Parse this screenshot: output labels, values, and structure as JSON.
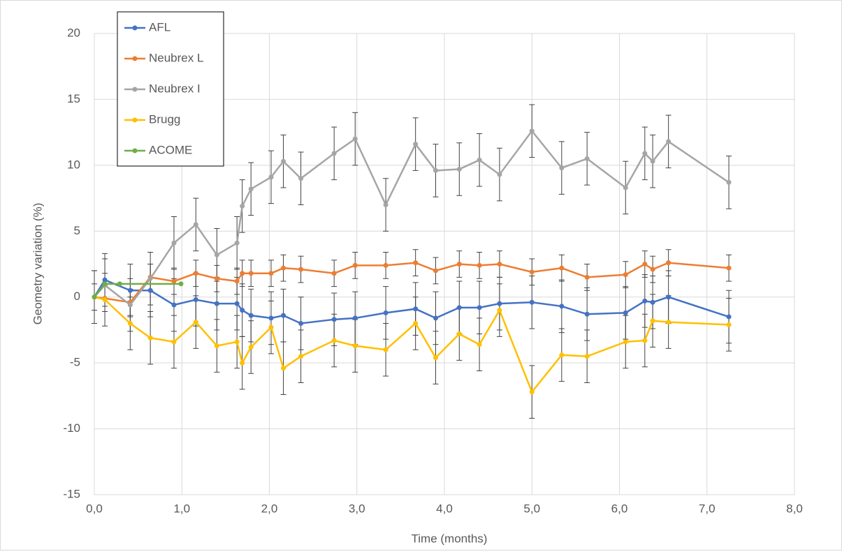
{
  "chart_data": {
    "type": "line",
    "xlabel": "Time (months)",
    "ylabel": "Geometry variation (%)",
    "xlim": [
      0,
      8
    ],
    "xticks": [
      {
        "value": 0,
        "label": "0,0"
      },
      {
        "value": 1,
        "label": "1,0"
      },
      {
        "value": 2,
        "label": "2,0"
      },
      {
        "value": 3,
        "label": "3,0"
      },
      {
        "value": 4,
        "label": "4,0"
      },
      {
        "value": 5,
        "label": "5,0"
      },
      {
        "value": 6,
        "label": "6,0"
      },
      {
        "value": 7,
        "label": "7,0"
      },
      {
        "value": 8,
        "label": "8,0"
      }
    ],
    "ylim": [
      -15,
      20
    ],
    "yticks": [
      -15,
      -10,
      -5,
      0,
      5,
      10,
      15,
      20
    ],
    "grid": true,
    "legend": "upper left",
    "series": [
      {
        "name": "AFL",
        "color": "#4472c4",
        "error": 2,
        "x": [
          0,
          0.12,
          0.41,
          0.64,
          0.91,
          1.16,
          1.4,
          1.63,
          1.69,
          1.79,
          2.02,
          2.16,
          2.36,
          2.74,
          2.98,
          3.33,
          3.67,
          3.9,
          4.17,
          4.4,
          4.63,
          5.0,
          5.34,
          5.63,
          6.07,
          6.29,
          6.38,
          6.56,
          7.25
        ],
        "values": [
          0,
          1.3,
          0.5,
          0.5,
          -0.6,
          -0.2,
          -0.5,
          -0.5,
          -1.0,
          -1.4,
          -1.6,
          -1.4,
          -2.0,
          -1.7,
          -1.6,
          -1.2,
          -0.9,
          -1.6,
          -0.8,
          -0.8,
          -0.5,
          -0.4,
          -0.7,
          -1.3,
          -1.2,
          -0.3,
          -0.4,
          0,
          -1.5
        ]
      },
      {
        "name": "Neubrex L",
        "color": "#ed7d31",
        "error": 1,
        "x": [
          0,
          0.12,
          0.41,
          0.64,
          0.91,
          1.16,
          1.4,
          1.63,
          1.69,
          1.79,
          2.02,
          2.16,
          2.36,
          2.74,
          2.98,
          3.33,
          3.67,
          3.9,
          4.17,
          4.4,
          4.63,
          5.0,
          5.34,
          5.63,
          6.07,
          6.29,
          6.38,
          6.56,
          7.25
        ],
        "values": [
          0,
          -0.1,
          -0.4,
          1.5,
          1.2,
          1.8,
          1.4,
          1.2,
          1.8,
          1.8,
          1.8,
          2.2,
          2.1,
          1.8,
          2.4,
          2.4,
          2.6,
          2.0,
          2.5,
          2.4,
          2.5,
          1.9,
          2.2,
          1.5,
          1.7,
          2.5,
          2.1,
          2.6,
          2.2
        ]
      },
      {
        "name": "Neubrex I",
        "color": "#a5a5a5",
        "error": 2,
        "x": [
          0,
          0.12,
          0.41,
          0.64,
          0.91,
          1.16,
          1.4,
          1.63,
          1.69,
          1.79,
          2.02,
          2.16,
          2.36,
          2.74,
          2.98,
          3.33,
          3.67,
          3.9,
          4.17,
          4.4,
          4.63,
          5.0,
          5.34,
          5.63,
          6.07,
          6.29,
          6.38,
          6.56,
          7.25
        ],
        "values": [
          0,
          0.9,
          -0.6,
          1.4,
          4.1,
          5.5,
          3.2,
          4.1,
          6.9,
          8.2,
          9.1,
          10.3,
          9.0,
          10.9,
          12.0,
          7.0,
          11.6,
          9.6,
          9.7,
          10.4,
          9.3,
          12.6,
          9.8,
          10.5,
          8.3,
          10.9,
          10.3,
          11.8,
          8.7
        ]
      },
      {
        "name": "Brugg",
        "color": "#ffc000",
        "error": 2,
        "x": [
          0,
          0.12,
          0.41,
          0.64,
          0.91,
          1.16,
          1.4,
          1.63,
          1.69,
          1.79,
          2.02,
          2.16,
          2.36,
          2.74,
          2.98,
          3.33,
          3.67,
          3.9,
          4.17,
          4.4,
          4.63,
          5.0,
          5.34,
          5.63,
          6.07,
          6.29,
          6.38,
          6.56,
          7.25
        ],
        "values": [
          0,
          -0.2,
          -2.0,
          -3.1,
          -3.4,
          -1.9,
          -3.7,
          -3.4,
          -5.0,
          -3.8,
          -2.3,
          -5.4,
          -4.5,
          -3.3,
          -3.7,
          -4.0,
          -2.0,
          -4.6,
          -2.8,
          -3.6,
          -1.0,
          -7.2,
          -4.4,
          -4.5,
          -3.4,
          -3.3,
          -1.8,
          -1.9,
          -2.1
        ]
      },
      {
        "name": "ACOME",
        "color": "#70ad47",
        "x": [
          0,
          0.12,
          0.29,
          0.99
        ],
        "values": [
          0,
          1.0,
          1.0,
          1.0
        ]
      }
    ]
  }
}
